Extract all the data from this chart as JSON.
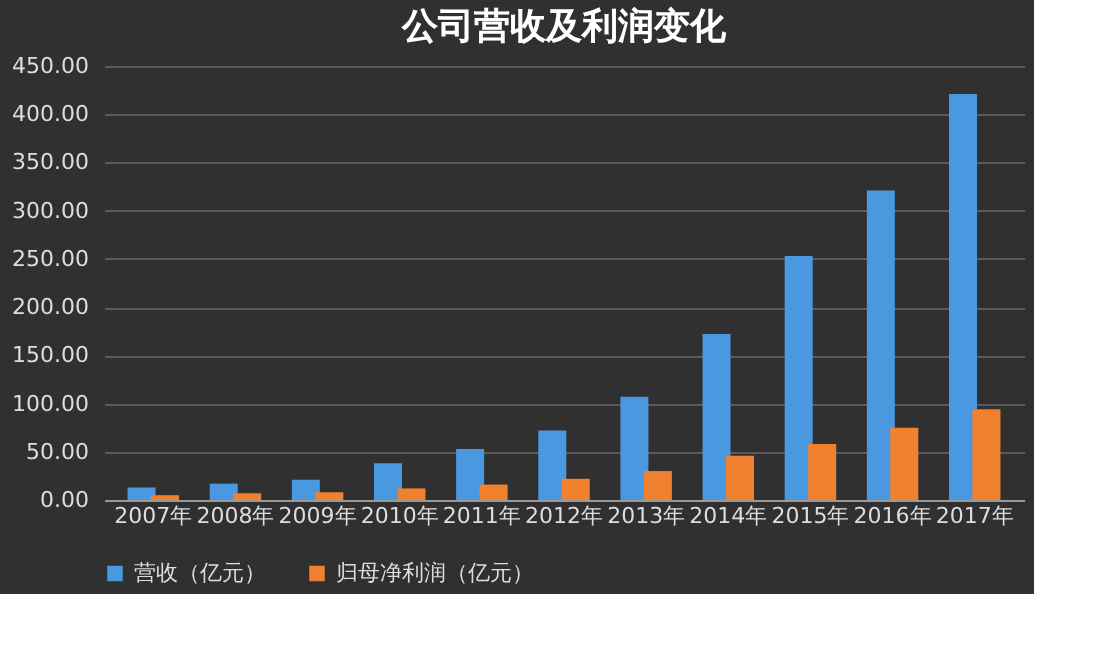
{
  "chart_data": {
    "type": "bar",
    "title": "公司营收及利润变化",
    "categories": [
      "2007年",
      "2008年",
      "2009年",
      "2010年",
      "2011年",
      "2012年",
      "2013年",
      "2014年",
      "2015年",
      "2016年",
      "2017年"
    ],
    "series": [
      {
        "name": "营收（亿元）",
        "color": "#4a98e0",
        "values": [
          13,
          17,
          21,
          38,
          53,
          72,
          107,
          172,
          253,
          321,
          421
        ]
      },
      {
        "name": "归母净利润（亿元）",
        "color": "#f0812e",
        "values": [
          5,
          7,
          8,
          12,
          16,
          22,
          30,
          46,
          58,
          75,
          94
        ]
      }
    ],
    "ylim": [
      0,
      450
    ],
    "yticks": [
      {
        "value": 0,
        "label": "0.00"
      },
      {
        "value": 50,
        "label": "50.00"
      },
      {
        "value": 100,
        "label": "100.00"
      },
      {
        "value": 150,
        "label": "150.00"
      },
      {
        "value": 200,
        "label": "200.00"
      },
      {
        "value": 250,
        "label": "250.00"
      },
      {
        "value": 300,
        "label": "300.00"
      },
      {
        "value": 350,
        "label": "350.00"
      },
      {
        "value": 400,
        "label": "400.00"
      },
      {
        "value": 450,
        "label": "450.00"
      }
    ],
    "grid": "y",
    "legend": "bottom"
  }
}
